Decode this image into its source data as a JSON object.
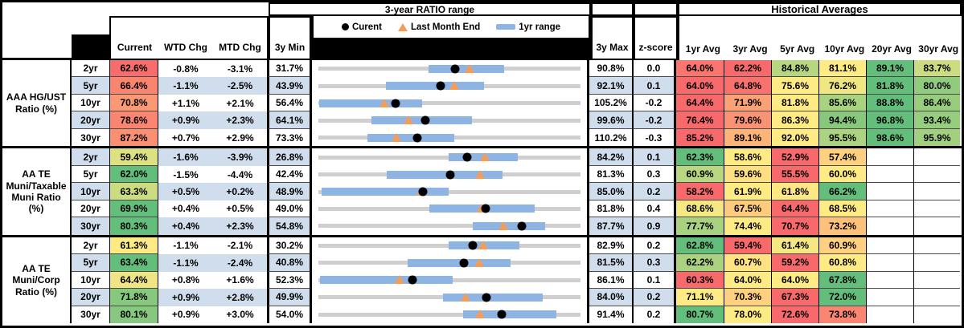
{
  "colors": {
    "banding": "#CFDDEC",
    "track_gray": "#D0CECE",
    "range_bar_blue": "#8EB4E3",
    "triangle_orange": "#F59D56",
    "dot_black": "#000000",
    "scale_low_red": "#F8696B",
    "scale_mid_yellow": "#FFEB84",
    "scale_high_green": "#63BE7B"
  },
  "header": {
    "ratio_range_title": "3-year RATIO range",
    "historical_title": "Historical Averages",
    "current": "Current",
    "wtd": "WTD Chg",
    "mtd": "MTD Chg",
    "min": "3y Min",
    "max": "3y Max",
    "z": "z-score",
    "avgs": [
      "1yr Avg",
      "3yr Avg",
      "5yr Avg",
      "10yr Avg",
      "20yr Avg",
      "30yr Avg"
    ]
  },
  "legend": {
    "current": "Curent",
    "last_month_end": "Last Month End",
    "range_1yr": "1yr range"
  },
  "groups": [
    {
      "label_lines": [
        "AAA HG/UST",
        "Ratio (%)"
      ],
      "rows": [
        {
          "tenor": "2yr",
          "current": "62.6%",
          "wtd": "-0.8%",
          "mtd": "-3.1%",
          "min": "31.7%",
          "max": "90.8%",
          "z": "0.0",
          "avgs": [
            "64.0%",
            "62.2%",
            "84.8%",
            "81.1%",
            "89.1%",
            "83.7%"
          ]
        },
        {
          "tenor": "5yr",
          "current": "66.4%",
          "wtd": "-1.1%",
          "mtd": "-2.5%",
          "min": "43.9%",
          "max": "92.1%",
          "z": "0.1",
          "avgs": [
            "64.0%",
            "64.8%",
            "75.6%",
            "76.2%",
            "81.8%",
            "80.0%"
          ]
        },
        {
          "tenor": "10yr",
          "current": "70.8%",
          "wtd": "+1.1%",
          "mtd": "+2.1%",
          "min": "56.4%",
          "max": "105.2%",
          "z": "-0.2",
          "avgs": [
            "64.4%",
            "71.9%",
            "81.8%",
            "85.6%",
            "88.8%",
            "86.4%"
          ]
        },
        {
          "tenor": "20yr",
          "current": "78.6%",
          "wtd": "+0.9%",
          "mtd": "+2.3%",
          "min": "64.1%",
          "max": "99.6%",
          "z": "-0.2",
          "avgs": [
            "76.4%",
            "79.6%",
            "86.3%",
            "94.4%",
            "96.8%",
            "93.4%"
          ]
        },
        {
          "tenor": "30yr",
          "current": "87.2%",
          "wtd": "+0.7%",
          "mtd": "+2.9%",
          "min": "73.3%",
          "max": "110.2%",
          "z": "-0.3",
          "avgs": [
            "85.2%",
            "89.1%",
            "92.0%",
            "95.5%",
            "98.6%",
            "95.9%"
          ]
        }
      ]
    },
    {
      "label_lines": [
        "AA TE",
        "Muni/Taxable",
        "Muni Ratio",
        "(%)"
      ],
      "rows": [
        {
          "tenor": "2yr",
          "current": "59.4%",
          "wtd": "-1.6%",
          "mtd": "-3.9%",
          "min": "26.8%",
          "max": "84.2%",
          "z": "0.1",
          "avgs": [
            "62.3%",
            "58.6%",
            "52.9%",
            "57.4%",
            "",
            ""
          ]
        },
        {
          "tenor": "5yr",
          "current": "62.0%",
          "wtd": "-1.5%",
          "mtd": "-4.4%",
          "min": "42.4%",
          "max": "81.3%",
          "z": "0.3",
          "avgs": [
            "60.9%",
            "59.6%",
            "55.5%",
            "60.0%",
            "",
            ""
          ]
        },
        {
          "tenor": "10yr",
          "current": "63.3%",
          "wtd": "+0.5%",
          "mtd": "+0.2%",
          "min": "48.9%",
          "max": "85.0%",
          "z": "0.2",
          "avgs": [
            "58.2%",
            "61.9%",
            "61.8%",
            "66.2%",
            "",
            ""
          ]
        },
        {
          "tenor": "20yr",
          "current": "69.9%",
          "wtd": "+0.4%",
          "mtd": "+0.5%",
          "min": "49.0%",
          "max": "81.8%",
          "z": "0.4",
          "avgs": [
            "68.6%",
            "67.5%",
            "64.4%",
            "68.5%",
            "",
            ""
          ]
        },
        {
          "tenor": "30yr",
          "current": "80.3%",
          "wtd": "+0.4%",
          "mtd": "+2.3%",
          "min": "54.8%",
          "max": "87.7%",
          "z": "0.9",
          "avgs": [
            "77.7%",
            "74.4%",
            "70.7%",
            "73.2%",
            "",
            ""
          ]
        }
      ]
    },
    {
      "label_lines": [
        "AA TE",
        "Muni/Corp",
        "Ratio (%)"
      ],
      "rows": [
        {
          "tenor": "2yr",
          "current": "61.3%",
          "wtd": "-1.1%",
          "mtd": "-2.1%",
          "min": "30.2%",
          "max": "82.9%",
          "z": "0.2",
          "avgs": [
            "62.8%",
            "59.4%",
            "61.4%",
            "60.9%",
            "",
            ""
          ]
        },
        {
          "tenor": "5yr",
          "current": "63.4%",
          "wtd": "-1.1%",
          "mtd": "-2.4%",
          "min": "40.8%",
          "max": "81.5%",
          "z": "0.3",
          "avgs": [
            "62.2%",
            "60.7%",
            "59.2%",
            "60.8%",
            "",
            ""
          ]
        },
        {
          "tenor": "10yr",
          "current": "64.4%",
          "wtd": "+0.8%",
          "mtd": "+1.6%",
          "min": "52.3%",
          "max": "86.1%",
          "z": "0.1",
          "avgs": [
            "60.3%",
            "64.0%",
            "64.0%",
            "67.8%",
            "",
            ""
          ]
        },
        {
          "tenor": "20yr",
          "current": "71.8%",
          "wtd": "+0.9%",
          "mtd": "+2.8%",
          "min": "49.9%",
          "max": "84.0%",
          "z": "0.2",
          "avgs": [
            "71.1%",
            "70.3%",
            "67.3%",
            "72.0%",
            "",
            ""
          ]
        },
        {
          "tenor": "30yr",
          "current": "80.1%",
          "wtd": "+0.9%",
          "mtd": "+3.0%",
          "min": "54.0%",
          "max": "91.4%",
          "z": "0.2",
          "avgs": [
            "80.7%",
            "78.0%",
            "72.6%",
            "73.8%",
            "",
            ""
          ]
        }
      ]
    }
  ],
  "chart_data": {
    "type": "range-dot",
    "title": "3-year RATIO range",
    "legend": [
      "Curent",
      "Last Month End",
      "1yr range"
    ],
    "tenors": [
      "2yr",
      "5yr",
      "10yr",
      "20yr",
      "30yr"
    ],
    "groups": [
      {
        "name": "AAA HG/UST Ratio (%)",
        "min": [
          31.7,
          43.9,
          56.4,
          64.1,
          73.3
        ],
        "max": [
          90.8,
          92.1,
          105.2,
          99.6,
          110.2
        ],
        "current": [
          62.6,
          66.4,
          70.8,
          78.6,
          87.2
        ],
        "last_month_end": [
          65.7,
          68.9,
          68.7,
          76.3,
          84.3
        ],
        "range_1yr_low": [
          56.6,
          56.3,
          56.6,
          71.3,
          80.2
        ],
        "range_1yr_high": [
          73.6,
          74.4,
          75.7,
          84.9,
          92.4
        ],
        "averages": [
          [
            64.0,
            62.2,
            84.8,
            81.1,
            89.1,
            83.7
          ],
          [
            64.0,
            64.8,
            75.6,
            76.2,
            81.8,
            80.0
          ],
          [
            64.4,
            71.9,
            81.8,
            85.6,
            88.8,
            86.4
          ],
          [
            76.4,
            79.6,
            86.3,
            94.4,
            96.8,
            93.4
          ],
          [
            85.2,
            89.1,
            92.0,
            95.5,
            98.6,
            95.9
          ]
        ]
      },
      {
        "name": "AA TE Muni/Taxable Muni Ratio (%)",
        "min": [
          26.8,
          42.4,
          48.9,
          49.0,
          54.8
        ],
        "max": [
          84.2,
          81.3,
          85.0,
          81.8,
          87.7
        ],
        "current": [
          59.4,
          62.0,
          63.3,
          69.9,
          80.3
        ],
        "last_month_end": [
          63.3,
          66.4,
          63.1,
          69.4,
          78.0
        ],
        "range_1yr_low": [
          55.3,
          52.6,
          49.3,
          62.9,
          74.2
        ],
        "range_1yr_high": [
          70.5,
          69.7,
          66.8,
          76.1,
          83.3
        ],
        "averages": [
          [
            62.3,
            58.6,
            52.9,
            57.4,
            null,
            null
          ],
          [
            60.9,
            59.6,
            55.5,
            60.0,
            null,
            null
          ],
          [
            58.2,
            61.9,
            61.8,
            66.2,
            null,
            null
          ],
          [
            68.6,
            67.5,
            64.4,
            68.5,
            null,
            null
          ],
          [
            77.7,
            74.4,
            70.7,
            73.2,
            null,
            null
          ]
        ]
      },
      {
        "name": "AA TE Muni/Corp Ratio (%)",
        "min": [
          30.2,
          40.8,
          52.3,
          49.9,
          54.0
        ],
        "max": [
          82.9,
          81.5,
          86.1,
          84.0,
          91.4
        ],
        "current": [
          61.3,
          63.4,
          64.4,
          71.8,
          80.1
        ],
        "last_month_end": [
          63.4,
          65.8,
          62.8,
          69.0,
          77.1
        ],
        "range_1yr_low": [
          56.4,
          54.7,
          52.5,
          66.1,
          74.6
        ],
        "range_1yr_high": [
          70.6,
          70.6,
          69.6,
          79.1,
          88.0
        ],
        "averages": [
          [
            62.8,
            59.4,
            61.4,
            60.9,
            null,
            null
          ],
          [
            62.2,
            60.7,
            59.2,
            60.8,
            null,
            null
          ],
          [
            60.3,
            64.0,
            64.0,
            67.8,
            null,
            null
          ],
          [
            71.1,
            70.3,
            67.3,
            72.0,
            null,
            null
          ],
          [
            80.7,
            78.0,
            72.6,
            73.8,
            null,
            null
          ]
        ]
      }
    ]
  }
}
